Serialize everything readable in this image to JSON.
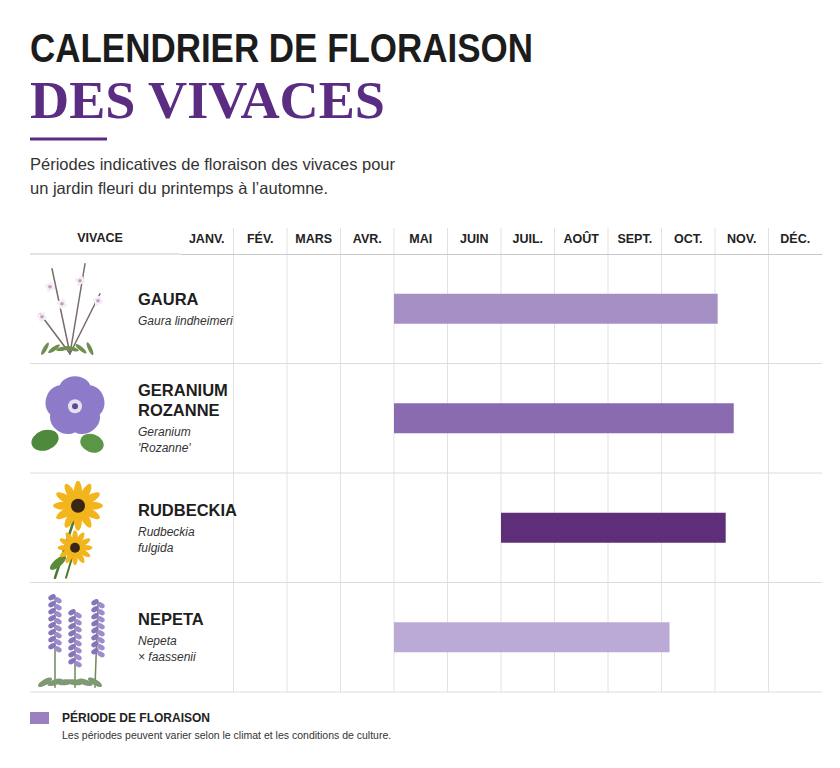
{
  "chart_data": {
    "type": "gantt",
    "title": [
      "CALENDRIER DE FLORAISON",
      "DES VIVACES"
    ],
    "subtitle": [
      "Périodes indicatives de floraison des vivaces pour",
      "un jardin fleuri du printemps à l’automne."
    ],
    "row_header": "VIVACE",
    "categories": [
      "JANV.",
      "FÉV.",
      "MARS",
      "AVR.",
      "MAI",
      "JUIN",
      "JUIL.",
      "AOÛT",
      "SEPT.",
      "OCT.",
      "NOV.",
      "DÉC."
    ],
    "xlim": [
      0,
      12
    ],
    "grid": true,
    "orientation": "horizontal",
    "color": "#9b80c0",
    "legend_title": "PÉRIODE DE FLORAISON",
    "note": "Les périodes peuvent varier selon le climat et les conditions de culture.",
    "series": [
      {
        "name": [
          "GAURA"
        ],
        "latin": [
          "Gaura lindheimeri"
        ],
        "color": "#a58fc4",
        "start": 4,
        "end": 10.05
      },
      {
        "name": [
          "GERANIUM",
          "ROZANNE"
        ],
        "latin": [
          "Geranium",
          "'Rozanne'"
        ],
        "color": "#8a6bb0",
        "start": 4,
        "end": 10.35
      },
      {
        "name": [
          "RUDBECKIA"
        ],
        "latin": [
          "Rudbeckia",
          "fulgida"
        ],
        "color": "#5e2f78",
        "start": 6,
        "end": 10.2
      },
      {
        "name": [
          "NEPETA"
        ],
        "latin": [
          "Nepeta",
          "× faassenii"
        ],
        "color": "#bcaad6",
        "start": 4,
        "end": 9.15
      }
    ]
  }
}
